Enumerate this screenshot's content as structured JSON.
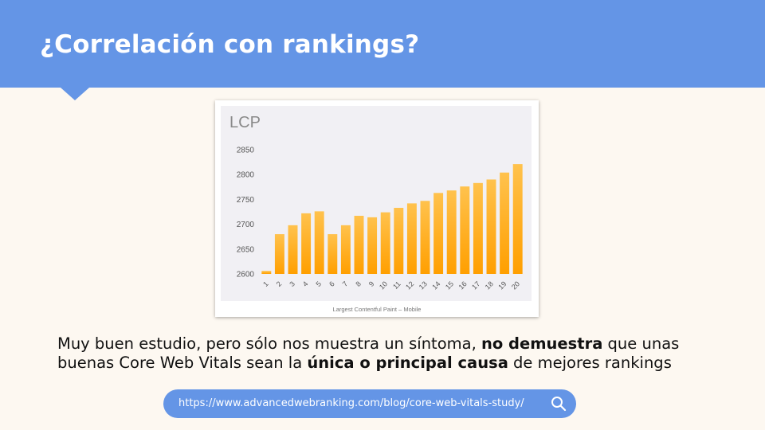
{
  "slide": {
    "title": "¿Correlación con rankings?",
    "text_1": "Muy buen estudio, pero sólo nos muestra un síntoma, ",
    "bold_1": "no demuestra",
    "text_2": " que unas buenas Core Web Vitals sean la ",
    "bold_2": "única o principal causa",
    "text_3": " de mejores rankings",
    "url": "https://www.advancedwebranking.com/blog/core-web-vitals-study/",
    "search_icon": "search-icon"
  },
  "colors": {
    "header": "#6495e6",
    "background": "#fdf8f1",
    "bar": "#ffa500",
    "bar_light": "#ffc24d"
  },
  "chart_data": {
    "type": "bar",
    "title": "LCP",
    "caption": "Largest Contentful Paint – Mobile",
    "categories": [
      "1",
      "2",
      "3",
      "4",
      "5",
      "6",
      "7",
      "8",
      "9",
      "10",
      "11",
      "12",
      "13",
      "14",
      "15",
      "16",
      "17",
      "18",
      "19",
      "20"
    ],
    "values": [
      2606,
      2680,
      2698,
      2722,
      2726,
      2680,
      2698,
      2717,
      2714,
      2724,
      2733,
      2742,
      2747,
      2763,
      2768,
      2776,
      2783,
      2790,
      2804,
      2821
    ],
    "yticks": [
      2600,
      2650,
      2700,
      2750,
      2800,
      2850
    ],
    "ylim": [
      2600,
      2850
    ],
    "grid": false
  }
}
